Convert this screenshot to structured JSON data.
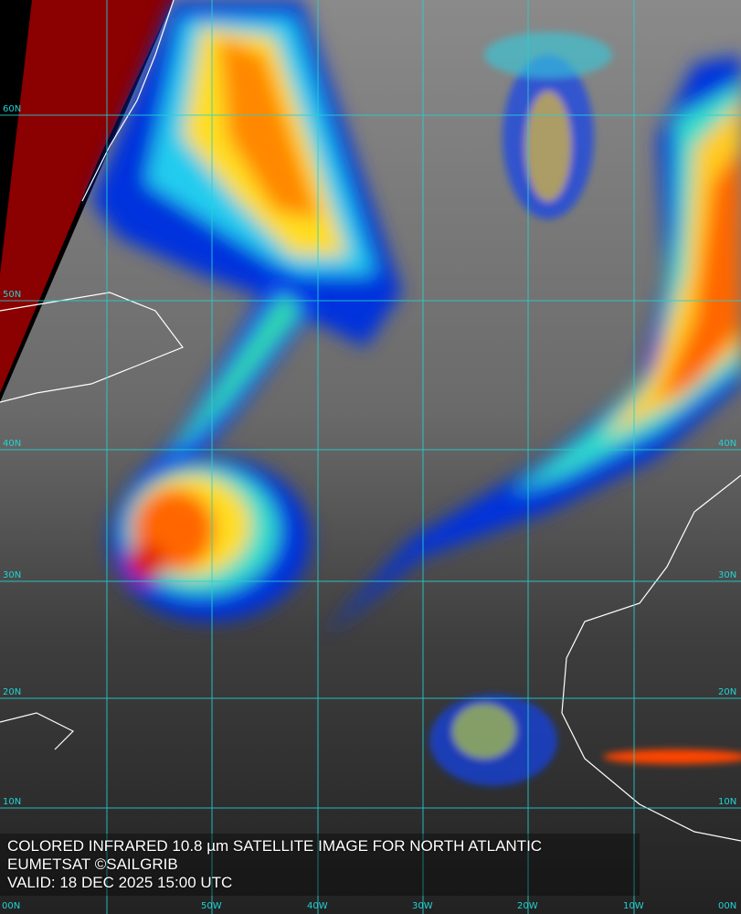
{
  "caption": {
    "title": "COLORED INFRARED 10.8 µm SATELLITE IMAGE FOR NORTH ATLANTIC",
    "credit": "EUMETSAT ©SAILGRIB",
    "valid": "VALID:  18 DEC 2025 15:00 UTC"
  },
  "grid": {
    "lat_labels": [
      "60N",
      "50N",
      "40N",
      "30N",
      "20N",
      "10N"
    ],
    "lon_labels": [
      "00N",
      "50W",
      "40W",
      "30W",
      "20W",
      "10W",
      "00N"
    ]
  },
  "colors": {
    "grid": "#22d3d3",
    "coast": "#ffffff",
    "cold_tops": "#cc1100",
    "background_ir": "#3a3a3a"
  }
}
